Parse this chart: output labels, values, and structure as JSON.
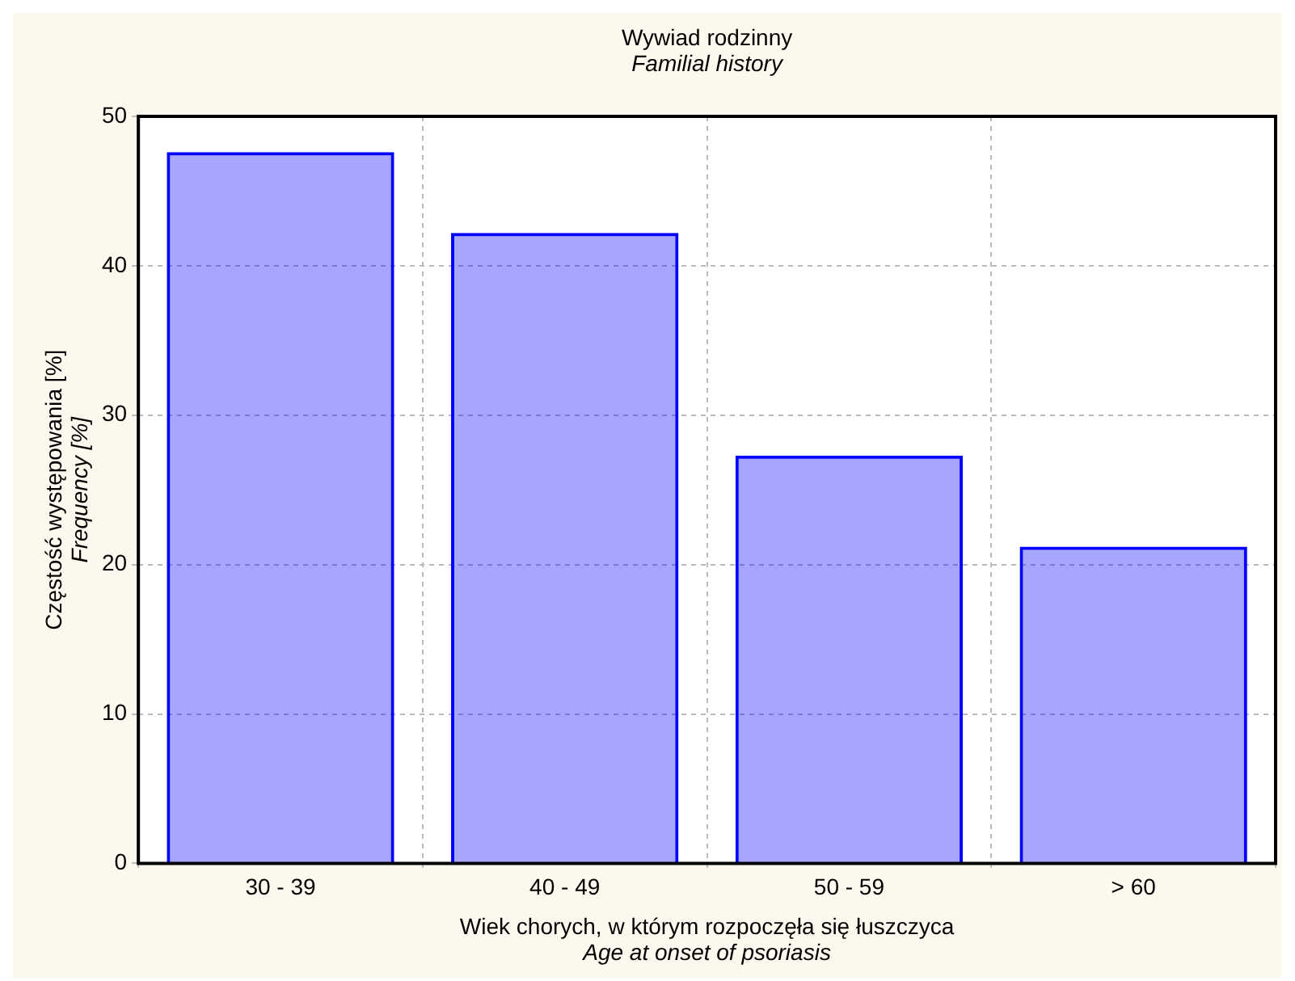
{
  "chart_data": {
    "type": "bar",
    "title": "Wywiad rodzinny",
    "subtitle": "Familial history",
    "xlabel": "Wiek chorych, w którym rozpoczęła się łuszczyca\nAge at onset of psoriasis",
    "ylabel": "Częstość występowania [%]\nFrequency [%]",
    "categories": [
      "30 - 39",
      "40 - 49",
      "50 - 59",
      "> 60"
    ],
    "values": [
      47.6,
      42.2,
      27.3,
      21.2
    ],
    "color": "#0000ff",
    "ylim": [
      0,
      50
    ],
    "yticks": [
      0,
      10,
      20,
      30,
      40,
      50
    ],
    "grid": true
  }
}
